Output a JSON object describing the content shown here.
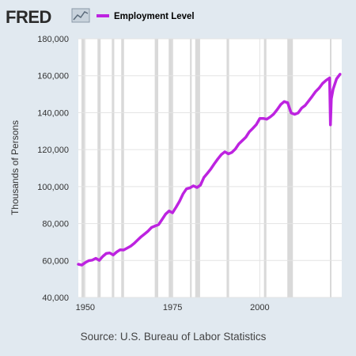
{
  "header": {
    "logo_text": "FRED",
    "legend_label": "Employment Level",
    "legend_color": "#bd23e0"
  },
  "chart_data": {
    "type": "line",
    "title": "",
    "xlabel": "",
    "ylabel": "Thousands of Persons",
    "xlim": [
      1948,
      2023.5
    ],
    "ylim": [
      40000,
      180000
    ],
    "y_ticks": [
      40000,
      60000,
      80000,
      100000,
      120000,
      140000,
      160000,
      180000
    ],
    "y_tick_labels": [
      "40,000",
      "60,000",
      "80,000",
      "100,000",
      "120,000",
      "140,000",
      "160,000",
      "180,000"
    ],
    "x_ticks": [
      1950,
      1975,
      2000
    ],
    "x_tick_labels": [
      "1950",
      "1975",
      "2000"
    ],
    "grid": true,
    "line_color": "#bd23e0",
    "recession_color": "#d9d9d9",
    "recessions": [
      [
        1948.9,
        1949.8
      ],
      [
        1953.5,
        1954.4
      ],
      [
        1957.6,
        1958.3
      ],
      [
        1960.3,
        1961.1
      ],
      [
        1969.9,
        1970.9
      ],
      [
        1973.9,
        1975.2
      ],
      [
        1980.0,
        1980.5
      ],
      [
        1981.5,
        1982.9
      ],
      [
        1990.5,
        1991.2
      ],
      [
        2001.2,
        2001.9
      ],
      [
        2007.9,
        2009.5
      ],
      [
        2020.1,
        2020.3
      ]
    ],
    "series": [
      {
        "x": [
          1948,
          1949,
          1950,
          1951,
          1952,
          1953,
          1954,
          1955,
          1956,
          1957,
          1958,
          1959,
          1960,
          1961,
          1962,
          1963,
          1964,
          1965,
          1966,
          1967,
          1968,
          1969,
          1970,
          1971,
          1972,
          1973,
          1974,
          1975,
          1976,
          1977,
          1978,
          1979,
          1980,
          1981,
          1982,
          1983,
          1984,
          1985,
          1986,
          1987,
          1988,
          1989,
          1990,
          1991,
          1992,
          1993,
          1994,
          1995,
          1996,
          1997,
          1998,
          1999,
          2000,
          2001,
          2002,
          2003,
          2004,
          2005,
          2006,
          2007,
          2008,
          2009,
          2010,
          2011,
          2012,
          2013,
          2014,
          2015,
          2016,
          2017,
          2018,
          2019,
          2020.0,
          2020.25,
          2020.5,
          2021,
          2022,
          2023
        ],
        "y": [
          58000,
          57500,
          58900,
          59900,
          60200,
          61200,
          60100,
          62200,
          63800,
          64100,
          63000,
          64600,
          65800,
          65700,
          66700,
          67800,
          69300,
          71100,
          72900,
          74400,
          75900,
          77900,
          78700,
          79400,
          82200,
          85100,
          86800,
          85800,
          88800,
          92000,
          96000,
          98800,
          99300,
          100400,
          99500,
          100800,
          105000,
          107200,
          109600,
          112400,
          115000,
          117300,
          118800,
          117700,
          118500,
          120300,
          123100,
          124900,
          126700,
          129600,
          131500,
          133500,
          136900,
          136900,
          136500,
          137700,
          139300,
          141700,
          144400,
          146000,
          145400,
          139900,
          139100,
          139900,
          142500,
          143900,
          146300,
          148800,
          151400,
          153300,
          155800,
          157500,
          158800,
          133400,
          147500,
          152600,
          158300,
          160800
        ]
      }
    ]
  },
  "footer": {
    "source": "Source: U.S. Bureau of Labor Statistics"
  }
}
